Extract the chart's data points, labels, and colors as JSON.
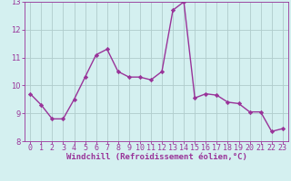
{
  "x": [
    0,
    1,
    2,
    3,
    4,
    5,
    6,
    7,
    8,
    9,
    10,
    11,
    12,
    13,
    14,
    15,
    16,
    17,
    18,
    19,
    20,
    21,
    22,
    23
  ],
  "y": [
    9.7,
    9.3,
    8.8,
    8.8,
    9.5,
    10.3,
    11.1,
    11.3,
    10.5,
    10.3,
    10.3,
    10.2,
    10.5,
    12.7,
    13.0,
    9.55,
    9.7,
    9.65,
    9.4,
    9.35,
    9.05,
    9.05,
    8.35,
    8.45
  ],
  "line_color": "#993399",
  "marker": "D",
  "markersize": 2.2,
  "linewidth": 1.0,
  "bg_color": "#d4f0f0",
  "grid_color": "#b0cccc",
  "xlabel": "Windchill (Refroidissement éolien,°C)",
  "xlabel_color": "#993399",
  "xlabel_fontsize": 6.5,
  "tick_color": "#993399",
  "tick_fontsize": 6.0,
  "ylim": [
    8,
    13
  ],
  "xlim_min": -0.5,
  "xlim_max": 23.5,
  "yticks": [
    8,
    9,
    10,
    11,
    12,
    13
  ],
  "xticks": [
    0,
    1,
    2,
    3,
    4,
    5,
    6,
    7,
    8,
    9,
    10,
    11,
    12,
    13,
    14,
    15,
    16,
    17,
    18,
    19,
    20,
    21,
    22,
    23
  ],
  "title": ""
}
